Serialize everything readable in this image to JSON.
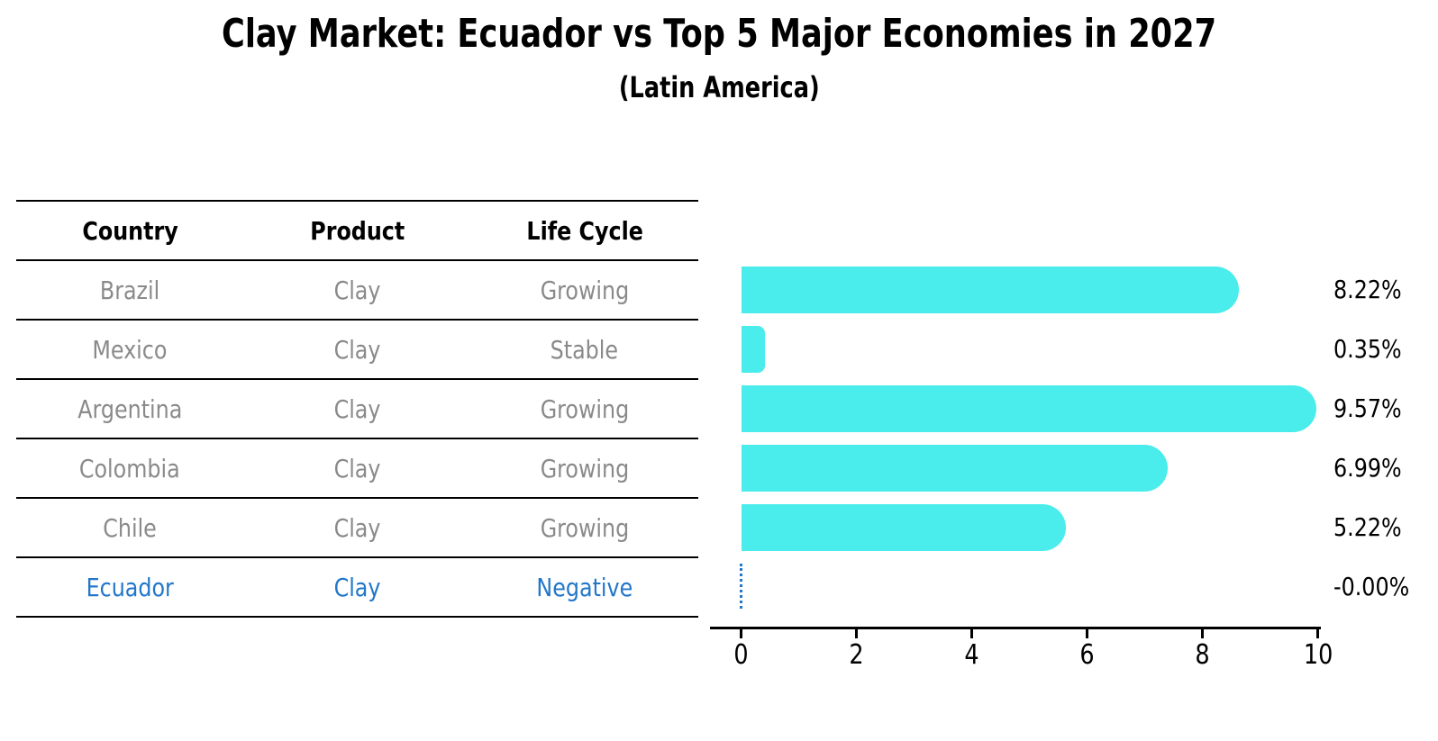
{
  "title": "Clay Market: Ecuador vs Top 5 Major Economies in 2027",
  "subtitle": "(Latin America)",
  "table": {
    "headers": [
      "Country",
      "Product",
      "Life Cycle"
    ],
    "rows": [
      {
        "country": "Brazil",
        "product": "Clay",
        "life_cycle": "Growing"
      },
      {
        "country": "Mexico",
        "product": "Clay",
        "life_cycle": "Stable"
      },
      {
        "country": "Argentina",
        "product": "Clay",
        "life_cycle": "Growing"
      },
      {
        "country": "Colombia",
        "product": "Clay",
        "life_cycle": "Growing"
      },
      {
        "country": "Chile",
        "product": "Clay",
        "life_cycle": "Growing"
      },
      {
        "country": "Ecuador",
        "product": "Clay",
        "life_cycle": "Negative",
        "highlighted": true
      }
    ]
  },
  "chart_data": {
    "type": "bar",
    "orientation": "horizontal",
    "title": "Clay Market: Ecuador vs Top 5 Major Economies in 2027",
    "subtitle": "(Latin America)",
    "categories": [
      "Brazil",
      "Mexico",
      "Argentina",
      "Colombia",
      "Chile",
      "Ecuador"
    ],
    "values": [
      8.22,
      0.35,
      9.57,
      6.99,
      5.22,
      0
    ],
    "value_labels": [
      "8.22%",
      "0.35%",
      "9.57%",
      "6.99%",
      "5.22%",
      "-0.00%"
    ],
    "xlabel": "",
    "ylabel": "",
    "xlim": [
      0,
      10
    ],
    "x_ticks": [
      0,
      2,
      4,
      6,
      8,
      10
    ],
    "grid": false,
    "legend_position": "none",
    "highlight_category": "Ecuador",
    "highlight_marker": "dotted zero line",
    "bar_color": "#4aecec",
    "highlight_color": "#2277c9",
    "axis_color": "#000000",
    "table_text_color": "#8a8a8a"
  }
}
